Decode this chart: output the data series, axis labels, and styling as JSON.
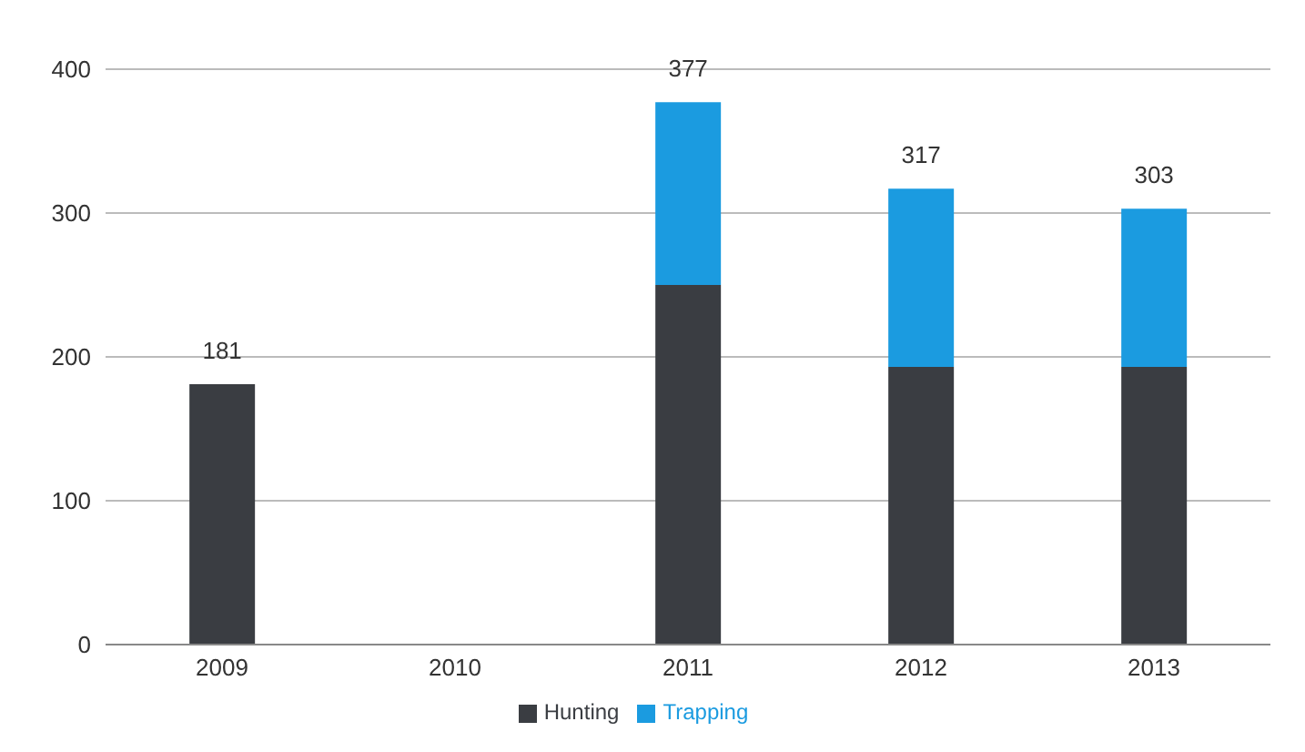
{
  "chart_data": {
    "type": "bar",
    "stacked": true,
    "categories": [
      "2009",
      "2010",
      "2011",
      "2012",
      "2013"
    ],
    "series": [
      {
        "name": "Hunting",
        "color": "#3a3d42",
        "values": [
          181,
          null,
          250,
          193,
          193
        ]
      },
      {
        "name": "Trapping",
        "color": "#1b9be0",
        "values": [
          null,
          null,
          127,
          124,
          110
        ]
      }
    ],
    "totals": [
      "181",
      null,
      "377",
      "317",
      "303"
    ],
    "ylim": [
      0,
      400
    ],
    "yticks": [
      0,
      100,
      200,
      300,
      400
    ],
    "grid": "y",
    "legend": "bottom"
  }
}
